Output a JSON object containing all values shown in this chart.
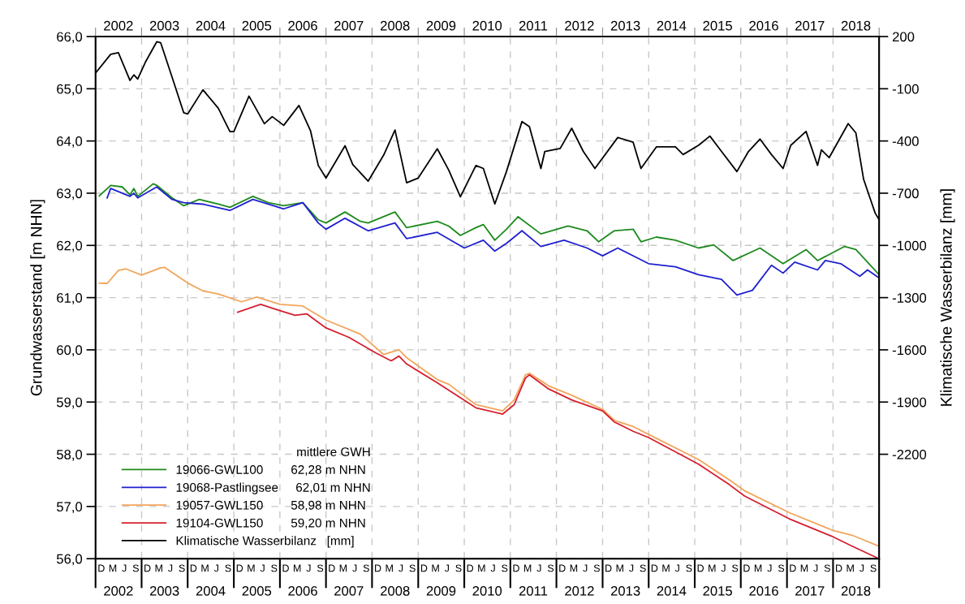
{
  "chart_data": {
    "type": "line",
    "ylabel": "Grundwasserstand [m NHN]",
    "y2label": "Klimatische Wasserbilanz [mm]",
    "legend_title": "mittlere GWH",
    "legend": "bottom left",
    "grid": true,
    "xlim": [
      "2001-11-01",
      "2018-11-01"
    ],
    "ylim": [
      56,
      66
    ],
    "yticks": [
      {
        "value": 56,
        "label": "56,0"
      },
      {
        "value": 57,
        "label": "57,0"
      },
      {
        "value": 58,
        "label": "58,0"
      },
      {
        "value": 59,
        "label": "59,0"
      },
      {
        "value": 60,
        "label": "60,0"
      },
      {
        "value": 61,
        "label": "61,0"
      },
      {
        "value": 62,
        "label": "62,0"
      },
      {
        "value": 63,
        "label": "63,0"
      },
      {
        "value": 64,
        "label": "64,0"
      },
      {
        "value": 65,
        "label": "65,0"
      },
      {
        "value": 66,
        "label": "66,0"
      }
    ],
    "y2lim": [
      -2800,
      200
    ],
    "y2ticks": [
      200,
      -100,
      -400,
      -700,
      -1000,
      -1300,
      -1600,
      -1900,
      -2200
    ],
    "xticks": [
      {
        "value": "2001-11-01",
        "label": null
      },
      {
        "value": "2002-11-01",
        "label": null
      },
      {
        "value": "2003-11-01",
        "label": null
      },
      {
        "value": "2004-11-01",
        "label": null
      },
      {
        "value": "2005-11-01",
        "label": null
      },
      {
        "value": "2006-11-01",
        "label": null
      },
      {
        "value": "2007-11-01",
        "label": null
      },
      {
        "value": "2008-11-01",
        "label": null
      },
      {
        "value": "2009-11-01",
        "label": null
      },
      {
        "value": "2010-11-01",
        "label": null
      },
      {
        "value": "2011-11-01",
        "label": null
      },
      {
        "value": "2012-11-01",
        "label": null
      },
      {
        "value": "2013-11-01",
        "label": null
      },
      {
        "value": "2014-11-01",
        "label": null
      },
      {
        "value": "2015-11-01",
        "label": null
      },
      {
        "value": "2016-11-01",
        "label": null
      },
      {
        "value": "2017-11-01",
        "label": null
      },
      {
        "value": "2018-11-01",
        "label": null
      },
      {
        "value": "2002-05-01",
        "label": "2002"
      },
      {
        "value": "2003-05-01",
        "label": "2003"
      },
      {
        "value": "2004-05-01",
        "label": "2004"
      },
      {
        "value": "2005-05-01",
        "label": "2005"
      },
      {
        "value": "2006-05-01",
        "label": "2006"
      },
      {
        "value": "2007-05-01",
        "label": "2007"
      },
      {
        "value": "2008-05-01",
        "label": "2008"
      },
      {
        "value": "2009-05-01",
        "label": "2009"
      },
      {
        "value": "2010-05-01",
        "label": "2010"
      },
      {
        "value": "2011-05-01",
        "label": "2011"
      },
      {
        "value": "2012-05-01",
        "label": "2012"
      },
      {
        "value": "2013-05-01",
        "label": "2013"
      },
      {
        "value": "2014-05-01",
        "label": "2014"
      },
      {
        "value": "2015-05-01",
        "label": "2015"
      },
      {
        "value": "2016-05-01",
        "label": "2016"
      },
      {
        "value": "2017-05-01",
        "label": "2017"
      },
      {
        "value": "2018-05-01",
        "label": "2018"
      }
    ],
    "annotations": [
      "D",
      "M",
      "J",
      "S",
      "D",
      "M",
      "J",
      "S",
      "D",
      "M",
      "J",
      "S",
      "D",
      "M",
      "J",
      "S",
      "D",
      "M",
      "J",
      "S",
      "D",
      "M",
      "J",
      "S",
      "D",
      "M",
      "J",
      "S",
      "D",
      "M",
      "J",
      "S",
      "D",
      "M",
      "J",
      "S",
      "D",
      "M",
      "J",
      "S",
      "D",
      "M",
      "J",
      "S",
      "D",
      "M",
      "J",
      "S",
      "D",
      "M",
      "J",
      "S",
      "D",
      "M",
      "J",
      "S",
      "D",
      "M",
      "J",
      "S",
      "D",
      "M",
      "J",
      "S",
      "D",
      "M",
      "J",
      "S"
    ],
    "x2lim": [
      "2001-11-01",
      "2018-11-01"
    ],
    "x2ticks": [
      {
        "value": "2001-11-01",
        "label": null
      },
      {
        "value": "2002-11-01",
        "label": null
      },
      {
        "value": "2003-11-01",
        "label": null
      },
      {
        "value": "2004-11-01",
        "label": null
      },
      {
        "value": "2005-11-01",
        "label": null
      },
      {
        "value": "2006-11-01",
        "label": null
      },
      {
        "value": "2007-11-01",
        "label": null
      },
      {
        "value": "2008-11-01",
        "label": null
      },
      {
        "value": "2009-11-01",
        "label": null
      },
      {
        "value": "2010-11-01",
        "label": null
      },
      {
        "value": "2011-11-01",
        "label": null
      },
      {
        "value": "2012-11-01",
        "label": null
      },
      {
        "value": "2013-11-01",
        "label": null
      },
      {
        "value": "2014-11-01",
        "label": null
      },
      {
        "value": "2015-11-01",
        "label": null
      },
      {
        "value": "2016-11-01",
        "label": null
      },
      {
        "value": "2017-11-01",
        "label": null
      },
      {
        "value": "2018-11-01",
        "label": null
      },
      {
        "value": "2002-05-01",
        "label": "2002"
      },
      {
        "value": "2003-05-01",
        "label": "2003"
      },
      {
        "value": "2004-05-01",
        "label": "2004"
      },
      {
        "value": "2005-05-01",
        "label": "2005"
      },
      {
        "value": "2006-05-01",
        "label": "2006"
      },
      {
        "value": "2007-05-01",
        "label": "2007"
      },
      {
        "value": "2008-05-01",
        "label": "2008"
      },
      {
        "value": "2009-05-01",
        "label": "2009"
      },
      {
        "value": "2010-05-01",
        "label": "2010"
      },
      {
        "value": "2011-05-01",
        "label": "2011"
      },
      {
        "value": "2012-05-01",
        "label": "2012"
      },
      {
        "value": "2013-05-01",
        "label": "2013"
      },
      {
        "value": "2014-05-01",
        "label": "2014"
      },
      {
        "value": "2015-05-01",
        "label": "2015"
      },
      {
        "value": "2016-05-01",
        "label": "2016"
      },
      {
        "value": "2017-05-01",
        "label": "2017"
      },
      {
        "value": "2018-05-01",
        "label": "2018"
      }
    ],
    "series": [
      {
        "name": "19066-GWL100        62,28 m NHN",
        "color": "#1e8a1e",
        "x": [
          "2001-12",
          "2002-03",
          "2002-06",
          "2002-08",
          "2002-09",
          "2002-10",
          "2003-02",
          "2003-03",
          "2003-07",
          "2003-10",
          "2004-02",
          "2004-07",
          "2004-10",
          "2005-04",
          "2005-08",
          "2005-12",
          "2006-05",
          "2006-09",
          "2006-11",
          "2007-04",
          "2007-08",
          "2007-10",
          "2008-05",
          "2008-08",
          "2009-04",
          "2009-07",
          "2009-10",
          "2010-02",
          "2010-04",
          "2010-07",
          "2010-10",
          "2011-01",
          "2011-07",
          "2012-02",
          "2012-07",
          "2012-10",
          "2013-02",
          "2013-07",
          "2013-09",
          "2014-01",
          "2014-06",
          "2014-12",
          "2015-04",
          "2015-09",
          "2016-04",
          "2016-10",
          "2017-04",
          "2017-07",
          "2018-02",
          "2018-05",
          "2018-10-31"
        ],
        "values": [
          62.95,
          63.15,
          63.12,
          62.97,
          63.09,
          62.94,
          63.18,
          63.15,
          62.91,
          62.76,
          62.88,
          62.79,
          62.73,
          62.94,
          62.82,
          62.76,
          62.82,
          62.49,
          62.43,
          62.64,
          62.46,
          62.43,
          62.64,
          62.34,
          62.46,
          62.37,
          62.19,
          62.34,
          62.4,
          62.1,
          62.31,
          62.55,
          62.22,
          62.37,
          62.28,
          62.07,
          62.28,
          62.31,
          62.07,
          62.16,
          62.1,
          61.95,
          62.01,
          61.71,
          61.95,
          61.65,
          61.92,
          61.71,
          61.98,
          61.92,
          61.44
        ]
      },
      {
        "name": "19068-Pastlingsee     62,01 m NHN",
        "color": "#2020d0",
        "x": [
          "2002-02",
          "2002-03",
          "2002-08",
          "2002-09",
          "2002-10",
          "2003-03",
          "2003-07",
          "2003-10",
          "2004-03",
          "2004-10",
          "2005-04",
          "2005-12",
          "2006-05",
          "2006-09",
          "2006-11",
          "2007-04",
          "2007-10",
          "2008-05",
          "2008-08",
          "2009-04",
          "2009-11",
          "2010-04",
          "2010-07",
          "2010-10",
          "2011-02",
          "2011-07",
          "2012-01",
          "2012-07",
          "2012-11",
          "2013-03",
          "2013-11",
          "2014-06",
          "2014-12",
          "2015-06",
          "2015-10",
          "2016-02",
          "2016-07",
          "2016-10",
          "2017-01",
          "2017-07",
          "2017-09",
          "2018-01",
          "2018-06",
          "2018-08",
          "2018-10-31"
        ],
        "values": [
          62.91,
          63.09,
          62.94,
          63.0,
          62.91,
          63.12,
          62.88,
          62.82,
          62.79,
          62.67,
          62.88,
          62.7,
          62.82,
          62.43,
          62.31,
          62.52,
          62.28,
          62.43,
          62.13,
          62.25,
          61.95,
          62.1,
          61.89,
          62.04,
          62.28,
          61.98,
          62.1,
          61.95,
          61.8,
          61.95,
          61.65,
          61.59,
          61.44,
          61.35,
          61.05,
          61.14,
          61.62,
          61.47,
          61.68,
          61.53,
          61.71,
          61.65,
          61.41,
          61.53,
          61.38
        ]
      },
      {
        "name": "19057-GWL150        58,98 m NHN",
        "color": "#f2a55a",
        "x": [
          "2001-12",
          "2002-02",
          "2002-05",
          "2002-07",
          "2002-11",
          "2003-04",
          "2003-05",
          "2003-11",
          "2004-03",
          "2004-07",
          "2005-01",
          "2005-05",
          "2005-11",
          "2006-05",
          "2006-11",
          "2007-08",
          "2008-02",
          "2008-06",
          "2008-08",
          "2009-04",
          "2009-07",
          "2010-02",
          "2010-09",
          "2010-12",
          "2011-03",
          "2011-04",
          "2011-09",
          "2012-03",
          "2012-11",
          "2013-02",
          "2013-07",
          "2013-11",
          "2014-12",
          "2015-08",
          "2015-12",
          "2016-12",
          "2017-11",
          "2018-04",
          "2018-10-31"
        ],
        "values": [
          61.28,
          61.27,
          61.52,
          61.55,
          61.43,
          61.57,
          61.58,
          61.28,
          61.13,
          61.07,
          60.92,
          61.01,
          60.87,
          60.84,
          60.57,
          60.3,
          59.91,
          60.0,
          59.85,
          59.43,
          59.34,
          58.95,
          58.83,
          59.04,
          59.52,
          59.55,
          59.31,
          59.13,
          58.86,
          58.65,
          58.53,
          58.38,
          57.9,
          57.51,
          57.3,
          56.87,
          56.54,
          56.45,
          56.24
        ]
      },
      {
        "name": "19104-GWL150        59,20 m NHN",
        "color": "#d42030",
        "x": [
          "2004-12",
          "2005-06",
          "2005-11",
          "2006-03",
          "2006-06",
          "2006-11",
          "2007-05",
          "2007-12",
          "2008-04",
          "2008-06",
          "2008-08",
          "2009-04",
          "2010-02",
          "2010-09",
          "2010-12",
          "2011-03",
          "2011-04",
          "2011-09",
          "2012-03",
          "2012-11",
          "2013-02",
          "2013-07",
          "2013-11",
          "2014-12",
          "2015-08",
          "2015-12",
          "2016-12",
          "2017-11",
          "2018-04",
          "2018-10-31"
        ],
        "values": [
          60.72,
          60.87,
          60.75,
          60.66,
          60.69,
          60.42,
          60.24,
          59.94,
          59.79,
          59.88,
          59.73,
          59.37,
          58.89,
          58.77,
          58.95,
          59.46,
          59.52,
          59.25,
          59.04,
          58.83,
          58.62,
          58.44,
          58.32,
          57.81,
          57.42,
          57.2,
          56.75,
          56.42,
          56.24,
          56.0
        ]
      },
      {
        "name": "Klimatische Wasserbilanz   [mm]",
        "color": "#000000",
        "axis": "y2",
        "x": [
          "2001-11",
          "2002-03",
          "2002-05",
          "2002-08",
          "2002-09",
          "2002-10",
          "2002-12",
          "2003-03",
          "2003-04",
          "2003-07",
          "2003-10",
          "2003-11",
          "2004-03",
          "2004-07",
          "2004-10",
          "2004-11",
          "2005-03",
          "2005-07",
          "2005-09",
          "2005-12",
          "2006-04",
          "2006-07",
          "2006-09",
          "2006-11",
          "2007-04",
          "2007-06",
          "2007-10",
          "2008-02",
          "2008-05",
          "2008-08",
          "2008-11",
          "2009-04",
          "2009-07",
          "2009-10",
          "2010-02",
          "2010-04",
          "2010-07",
          "2010-10",
          "2011-02",
          "2011-04",
          "2011-07",
          "2011-08",
          "2011-12",
          "2012-03",
          "2012-06",
          "2012-09",
          "2013-03",
          "2013-07",
          "2013-09",
          "2014-01",
          "2014-06",
          "2014-08",
          "2014-12",
          "2015-03",
          "2015-06",
          "2015-10",
          "2016-01",
          "2016-04",
          "2016-07",
          "2016-10",
          "2016-12",
          "2017-04",
          "2017-07",
          "2017-08",
          "2017-10",
          "2018-03",
          "2018-05",
          "2018-07",
          "2018-10",
          "2018-10-31"
        ],
        "values": [
          -10,
          98,
          107,
          -52,
          -20,
          -44,
          53,
          170,
          165,
          -34,
          -238,
          -245,
          -106,
          -212,
          -346,
          -346,
          -142,
          -301,
          -260,
          -310,
          -196,
          -340,
          -541,
          -613,
          -427,
          -535,
          -631,
          -481,
          -337,
          -640,
          -613,
          -445,
          -568,
          -721,
          -541,
          -558,
          -762,
          -576,
          -288,
          -318,
          -558,
          -460,
          -443,
          -327,
          -460,
          -558,
          -380,
          -407,
          -558,
          -434,
          -434,
          -478,
          -425,
          -372,
          -460,
          -576,
          -460,
          -389,
          -478,
          -558,
          -425,
          -345,
          -540,
          -451,
          -496,
          -300,
          -354,
          -620,
          -815,
          -851
        ]
      }
    ]
  }
}
